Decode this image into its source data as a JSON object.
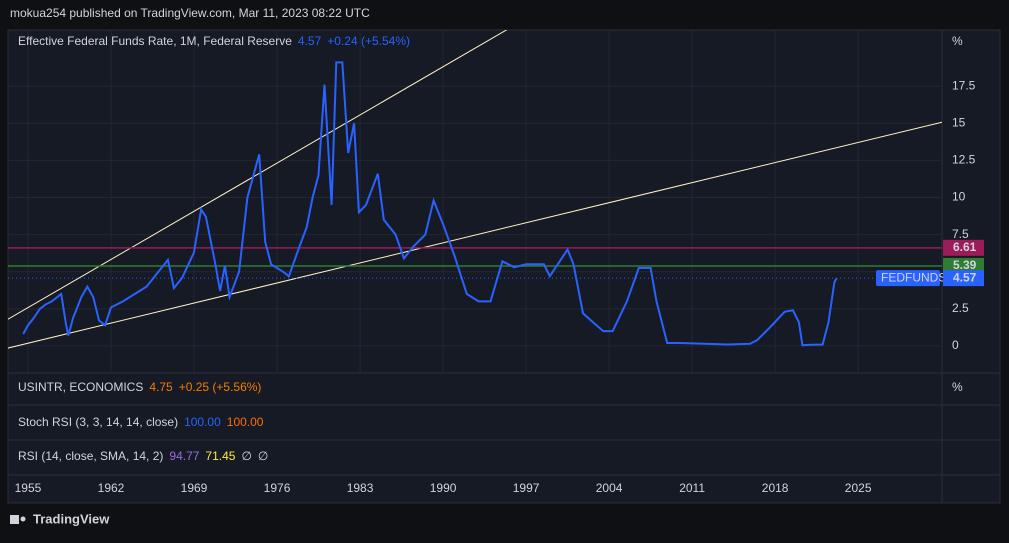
{
  "header": {
    "publisher": "mokua254 published on TradingView.com, Mar 11, 2023 08:22 UTC"
  },
  "chart_data": {
    "type": "line",
    "title": "Effective Federal Funds Rate, 1M, Federal Reserve",
    "unit": "%",
    "last_value": 4.57,
    "change": "+0.24 (+5.54%)",
    "x": [
      1954.6,
      1955,
      1955.5,
      1956,
      1956.5,
      1957,
      1957.8,
      1958.2,
      1958.4,
      1958.8,
      1959.5,
      1960,
      1960.5,
      1961,
      1961.5,
      1962,
      1963,
      1964,
      1965,
      1966,
      1966.8,
      1967.3,
      1968,
      1969,
      1969.6,
      1970,
      1970.8,
      1971.2,
      1971.6,
      1972,
      1972.8,
      1973.5,
      1974.5,
      1975,
      1975.5,
      1976.5,
      1977,
      1977.8,
      1978.5,
      1979,
      1979.5,
      1980,
      1980.6,
      1981,
      1981.5,
      1982,
      1982.5,
      1982.9,
      1983.5,
      1984.5,
      1985,
      1986,
      1986.7,
      1987.5,
      1988.5,
      1989.2,
      1990,
      1991,
      1992,
      1993,
      1994,
      1995,
      1996,
      1997,
      1998.5,
      1999,
      2000.5,
      2001,
      2001.8,
      2002.5,
      2003.5,
      2004.3,
      2005.5,
      2006.5,
      2007.5,
      2008,
      2008.9,
      2010,
      2012,
      2014,
      2015.9,
      2016.5,
      2017.5,
      2018.8,
      2019.5,
      2020,
      2020.3,
      2021,
      2022,
      2022.5,
      2023,
      2023.2
    ],
    "series": [
      {
        "name": "FEDFUNDS",
        "color": "#2962ff",
        "values": [
          0.8,
          1.4,
          1.9,
          2.5,
          2.8,
          3.0,
          3.5,
          1.5,
          0.7,
          1.9,
          3.3,
          4.0,
          3.3,
          1.7,
          1.4,
          2.6,
          3.0,
          3.5,
          4.0,
          5.0,
          5.8,
          3.9,
          4.6,
          6.3,
          9.2,
          8.7,
          5.5,
          3.7,
          5.4,
          3.3,
          5.0,
          10.0,
          12.9,
          7.0,
          5.5,
          5.0,
          4.7,
          6.5,
          8.0,
          10.0,
          11.5,
          17.6,
          9.5,
          19.1,
          19.1,
          13.0,
          15.0,
          9.0,
          9.5,
          11.6,
          8.5,
          7.5,
          5.9,
          6.7,
          7.5,
          9.8,
          8.2,
          6.0,
          3.5,
          3.0,
          3.0,
          5.7,
          5.3,
          5.5,
          5.5,
          4.7,
          6.5,
          5.5,
          2.2,
          1.7,
          1.0,
          1.0,
          3.0,
          5.25,
          5.25,
          3.0,
          0.2,
          0.2,
          0.15,
          0.1,
          0.15,
          0.4,
          1.2,
          2.3,
          2.4,
          1.6,
          0.05,
          0.08,
          0.1,
          1.6,
          4.3,
          4.57
        ]
      }
    ],
    "levels": [
      {
        "value": 6.61,
        "color": "#9c1b58"
      },
      {
        "value": 5.39,
        "color": "#2e7d32"
      }
    ],
    "trend_lines": [
      {
        "x": [
          1952.64,
          1995.64
        ],
        "y": [
          1.49,
          21.42
        ]
      },
      {
        "x": [
          1952.64,
          2032.07
        ],
        "y": [
          -0.27,
          15.07
        ]
      }
    ],
    "xlim": [
      1952.64,
      2032.07
    ],
    "xticks": [
      1955,
      1962,
      1969,
      1976,
      1983,
      1990,
      1997,
      2004,
      2011,
      2018,
      2025
    ],
    "ylim": [
      -1.82,
      21.28
    ],
    "yticks": [
      0,
      2.5,
      5,
      7.5,
      10,
      12.5,
      15,
      17.5
    ]
  },
  "panes": [
    {
      "title": "USINTR, ECONOMICS",
      "value": "4.75",
      "change": "+0.25 (+5.56%)",
      "unit": "%"
    },
    {
      "title": "Stoch RSI (3, 3, 14, 14, close)",
      "values": [
        "100.00",
        "100.00"
      ]
    },
    {
      "title": "RSI (14, close, SMA, 14, 2)",
      "values": [
        "94.77",
        "71.45",
        "∅",
        "∅"
      ]
    }
  ],
  "footer": {
    "brand": "TradingView"
  }
}
